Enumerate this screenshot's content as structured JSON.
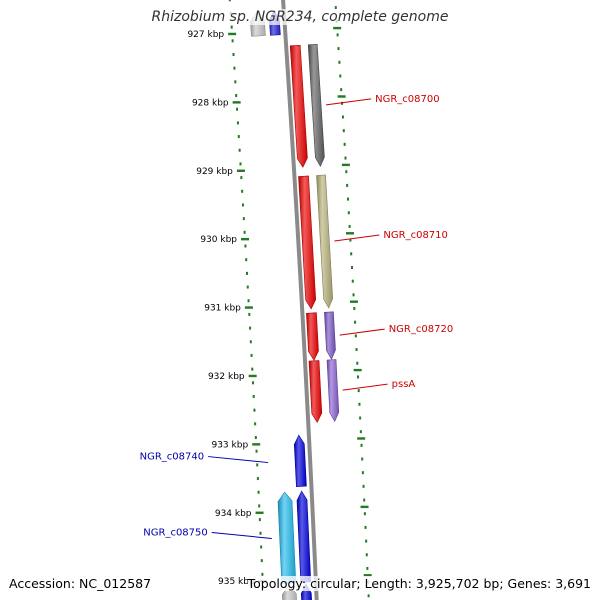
{
  "title": "Rhizobium sp. NGR234, complete genome",
  "accession_text": "Accession: NC_012587",
  "summary_text": "Topology: circular; Length: 3,925,702 bp; Genes: 3,691",
  "colors": {
    "backbone": "#8a8a8a",
    "tick": "#227a22",
    "plus_label": "#cc0000",
    "minus_label": "#0000aa"
  },
  "ticks": [
    {
      "label": "927 kbp"
    },
    {
      "label": "928 kbp"
    },
    {
      "label": "929 kbp"
    },
    {
      "label": "930 kbp"
    },
    {
      "label": "931 kbp"
    },
    {
      "label": "932 kbp"
    },
    {
      "label": "933 kbp"
    },
    {
      "label": "934 kbp"
    },
    {
      "label": "935 kbp"
    }
  ],
  "features": [
    {
      "id": "a0",
      "strand": "minus",
      "track": "cds",
      "start_kbp": 926.7,
      "end_kbp": 927.05,
      "color": "#2222dd",
      "label": ""
    },
    {
      "id": "a1",
      "strand": "minus",
      "track": "gene",
      "start_kbp": 926.7,
      "end_kbp": 927.05,
      "color": "#c8c8c8",
      "label": ""
    },
    {
      "id": "g1",
      "strand": "plus",
      "track": "cds",
      "start_kbp": 927.22,
      "end_kbp": 929.0,
      "color": "#ee0000",
      "label": ""
    },
    {
      "id": "g1b",
      "strand": "plus",
      "track": "gene",
      "start_kbp": 927.22,
      "end_kbp": 929.0,
      "color": "#606060",
      "label": "NGR_c08700"
    },
    {
      "id": "g2",
      "strand": "plus",
      "track": "cds",
      "start_kbp": 929.13,
      "end_kbp": 931.07,
      "color": "#ee0000",
      "label": ""
    },
    {
      "id": "g2b",
      "strand": "plus",
      "track": "gene",
      "start_kbp": 929.13,
      "end_kbp": 931.07,
      "color": "#b8b27a",
      "label": "NGR_c08710"
    },
    {
      "id": "g3",
      "strand": "plus",
      "track": "cds",
      "start_kbp": 931.13,
      "end_kbp": 931.82,
      "color": "#ee0000",
      "label": ""
    },
    {
      "id": "g3b",
      "strand": "plus",
      "track": "gene",
      "start_kbp": 931.13,
      "end_kbp": 931.82,
      "color": "#7a58c8",
      "label": "NGR_c08720"
    },
    {
      "id": "g4",
      "strand": "plus",
      "track": "cds",
      "start_kbp": 931.83,
      "end_kbp": 932.73,
      "color": "#ee0000",
      "label": ""
    },
    {
      "id": "g4b",
      "strand": "plus",
      "track": "gene",
      "start_kbp": 931.83,
      "end_kbp": 932.73,
      "color": "#8a60d4",
      "label": "pssA"
    },
    {
      "id": "g5",
      "strand": "minus",
      "track": "cds",
      "start_kbp": 932.9,
      "end_kbp": 933.65,
      "color": "#0000dd",
      "label": "NGR_c08740"
    },
    {
      "id": "g6",
      "strand": "minus",
      "track": "cds",
      "start_kbp": 933.72,
      "end_kbp": 935.05,
      "color": "#0000dd",
      "label": ""
    },
    {
      "id": "g6b",
      "strand": "minus",
      "track": "gene",
      "start_kbp": 933.72,
      "end_kbp": 935.05,
      "color": "#22bbee",
      "label": "NGR_c08750"
    },
    {
      "id": "z1",
      "strand": "minus",
      "track": "gene",
      "start_kbp": 935.08,
      "end_kbp": 935.4,
      "color": "#c8c8c8",
      "label": ""
    },
    {
      "id": "z2",
      "strand": "minus",
      "track": "cds",
      "start_kbp": 935.08,
      "end_kbp": 935.4,
      "color": "#0000dd",
      "label": ""
    }
  ]
}
